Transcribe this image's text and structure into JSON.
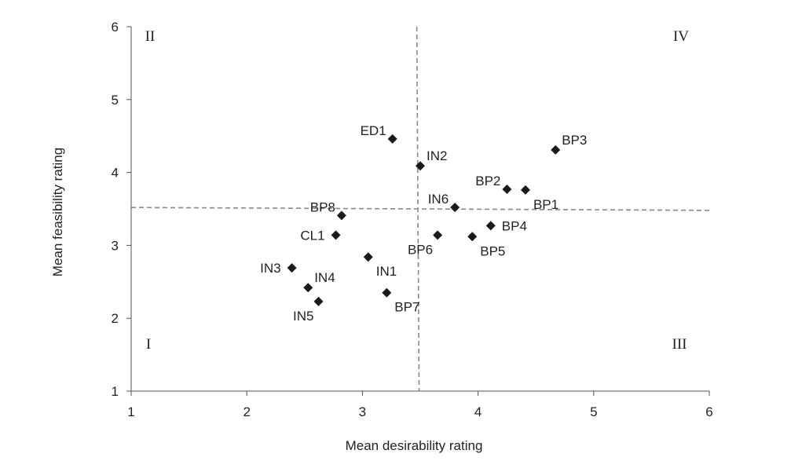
{
  "chart_data": {
    "type": "scatter",
    "xlabel": "Mean desirability rating",
    "ylabel": "Mean feasibility rating",
    "xlim": [
      1,
      6
    ],
    "ylim": [
      1,
      6
    ],
    "x_ticks": [
      1,
      2,
      3,
      4,
      5,
      6
    ],
    "y_ticks": [
      1,
      2,
      3,
      4,
      5,
      6
    ],
    "grid": false,
    "marker": "diamond",
    "reference_lines": {
      "vertical": {
        "x_top": 3.47,
        "x_bottom": 3.49
      },
      "horizontal": {
        "y_left": 3.52,
        "y_right": 3.48
      }
    },
    "quadrants": [
      {
        "label": "I",
        "position": "bottom-left"
      },
      {
        "label": "II",
        "position": "top-left"
      },
      {
        "label": "III",
        "position": "bottom-right"
      },
      {
        "label": "IV",
        "position": "top-right"
      }
    ],
    "points": [
      {
        "label": "ED1",
        "x": 3.26,
        "y": 4.46,
        "label_side": "left-up"
      },
      {
        "label": "IN2",
        "x": 3.5,
        "y": 4.09,
        "label_side": "right-up"
      },
      {
        "label": "BP3",
        "x": 4.67,
        "y": 4.31,
        "label_side": "right-up"
      },
      {
        "label": "BP2",
        "x": 4.25,
        "y": 3.77,
        "label_side": "left-up"
      },
      {
        "label": "BP1",
        "x": 4.41,
        "y": 3.76,
        "label_side": "right-down"
      },
      {
        "label": "IN6",
        "x": 3.8,
        "y": 3.52,
        "label_side": "left-up"
      },
      {
        "label": "BP8",
        "x": 2.82,
        "y": 3.41,
        "label_side": "left-up"
      },
      {
        "label": "CL1",
        "x": 2.77,
        "y": 3.14,
        "label_side": "left"
      },
      {
        "label": "BP4",
        "x": 4.11,
        "y": 3.27,
        "label_side": "right"
      },
      {
        "label": "BP5",
        "x": 3.95,
        "y": 3.12,
        "label_side": "right-down"
      },
      {
        "label": "BP6",
        "x": 3.65,
        "y": 3.14,
        "label_side": "left-down"
      },
      {
        "label": "IN1",
        "x": 3.05,
        "y": 2.84,
        "label_side": "right-down"
      },
      {
        "label": "IN3",
        "x": 2.39,
        "y": 2.69,
        "label_side": "left"
      },
      {
        "label": "IN4",
        "x": 2.53,
        "y": 2.42,
        "label_side": "right-up"
      },
      {
        "label": "IN5",
        "x": 2.62,
        "y": 2.23,
        "label_side": "left-down"
      },
      {
        "label": "BP7",
        "x": 3.21,
        "y": 2.35,
        "label_side": "right-down"
      }
    ]
  }
}
